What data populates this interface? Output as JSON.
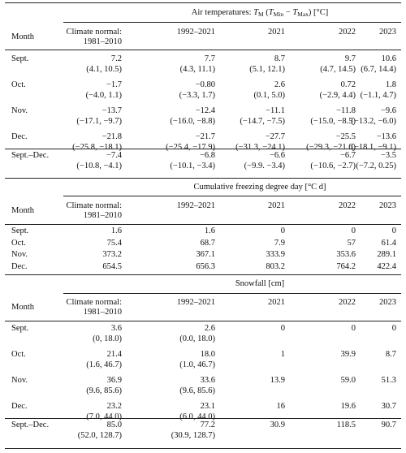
{
  "sections": [
    {
      "title": "Air temperatures",
      "unit": "[°C]",
      "column_headers": [
        "Month",
        "Climate normal:",
        "1981–2010",
        "1992–2021",
        "2021",
        "2022",
        "2023"
      ],
      "rows": [
        {
          "month": "Sept.",
          "values": [
            "7.2",
            "7.7",
            "8.7",
            "9.7",
            "10.6"
          ],
          "ranges": [
            "(4.1, 10.5)",
            "(4.3, 11.1)",
            "(5.1, 12.1)",
            "(4.7, 14.5)",
            "(6.7, 14.4)"
          ]
        },
        {
          "month": "Oct.",
          "values": [
            "−1.7",
            "−0.80",
            "2.6",
            "0.72",
            "1.8"
          ],
          "ranges": [
            "(−4.0, 1.1)",
            "(−3.3, 1.7)",
            "(0.1, 5.0)",
            "(−2.9, 4.4)",
            "(−1.1, 4.7)"
          ]
        },
        {
          "month": "Nov.",
          "values": [
            "−13.7",
            "−12.4",
            "−11.1",
            "−11.8",
            "−9.6"
          ],
          "ranges": [
            "(−17.1, −9.7)",
            "(−16.0, −8.8)",
            "(−14.7, −7.5)",
            "(−15.0, −8.5)",
            "(−13.2, −6.0)"
          ]
        },
        {
          "month": "Dec.",
          "values": [
            "−21.8",
            "−21.7",
            "−27.7",
            "−25.5",
            "−13.6"
          ],
          "ranges": [
            "(−25.8, −18.1)",
            "(−25.4, −17.9)",
            "(−31.3, −24.1)",
            "(−29.3, −21.6)",
            "(−18.1, −9.1)"
          ]
        }
      ],
      "total": {
        "month": "Sept.–Dec.",
        "values": [
          "−7.4",
          "−6.8",
          "−6.6",
          "−6.7",
          "−3.5"
        ],
        "ranges": [
          "(−10.8, −4.1)",
          "(−10.1, −3.4)",
          "(−9.9. −3.4)",
          "(−10.6, −2.7)",
          "(−7.2, 0.25)"
        ]
      }
    },
    {
      "title": "Cumulative freezing degree day [°C d]",
      "column_headers": [
        "Month",
        "Climate normal:",
        "1981–2010",
        "1992–2021",
        "2021",
        "2022",
        "2023"
      ],
      "rows": [
        {
          "month": "Sept.",
          "values": [
            "1.6",
            "1.6",
            "0",
            "0",
            "0"
          ]
        },
        {
          "month": "Oct.",
          "values": [
            "75.4",
            "68.7",
            "7.9",
            "57",
            "61.4"
          ]
        },
        {
          "month": "Nov.",
          "values": [
            "373.2",
            "367.1",
            "333.9",
            "353.6",
            "289.1"
          ]
        },
        {
          "month": "Dec.",
          "values": [
            "654.5",
            "656.3",
            "803.2",
            "764.2",
            "422.4"
          ]
        }
      ]
    },
    {
      "title": "Snowfall [cm]",
      "column_headers": [
        "Month",
        "Climate normal:",
        "1981–2010",
        "1992–2021",
        "2021",
        "2022",
        "2023"
      ],
      "rows": [
        {
          "month": "Sept.",
          "values": [
            "3.6",
            "2.6",
            "0",
            "0",
            "0"
          ],
          "ranges": [
            "(0, 18.0)",
            "(0.0, 18.0)"
          ]
        },
        {
          "month": "Oct.",
          "values": [
            "21.4",
            "18.0",
            "1",
            "39.9",
            "8.7"
          ],
          "ranges": [
            "(1.6, 46.7)",
            "(1.0, 46.7)"
          ]
        },
        {
          "month": "Nov.",
          "values": [
            "36.9",
            "33.6",
            "13.9",
            "59.0",
            "51.3"
          ],
          "ranges": [
            "(9.6, 85.6)",
            "(9.6, 85.6)"
          ]
        },
        {
          "month": "Dec.",
          "values": [
            "23.2",
            "23.1",
            "16",
            "19.6",
            "30.7"
          ],
          "ranges": [
            "(7.0, 44.0)",
            "(6.0, 44.0)"
          ]
        }
      ],
      "total": {
        "month": "Sept.–Dec.",
        "values": [
          "85.0",
          "77.2",
          "30.9",
          "118.5",
          "90.7"
        ],
        "ranges": [
          "(52.0, 128.7)",
          "(30.9, 128.7)"
        ]
      }
    }
  ]
}
